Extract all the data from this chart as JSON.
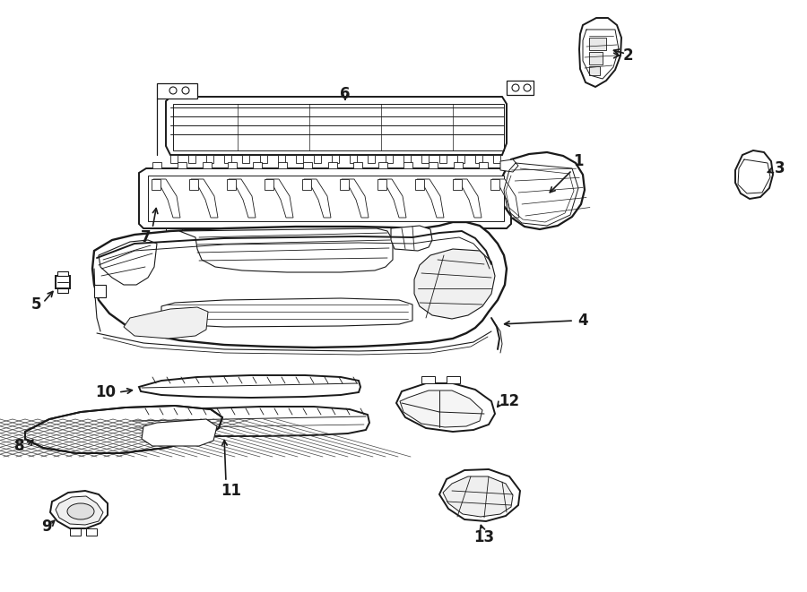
{
  "background_color": "#ffffff",
  "line_color": "#1a1a1a",
  "lw_main": 1.4,
  "lw_detail": 0.8,
  "lw_thin": 0.5,
  "label_fontsize": 12,
  "label_color": "#000000"
}
